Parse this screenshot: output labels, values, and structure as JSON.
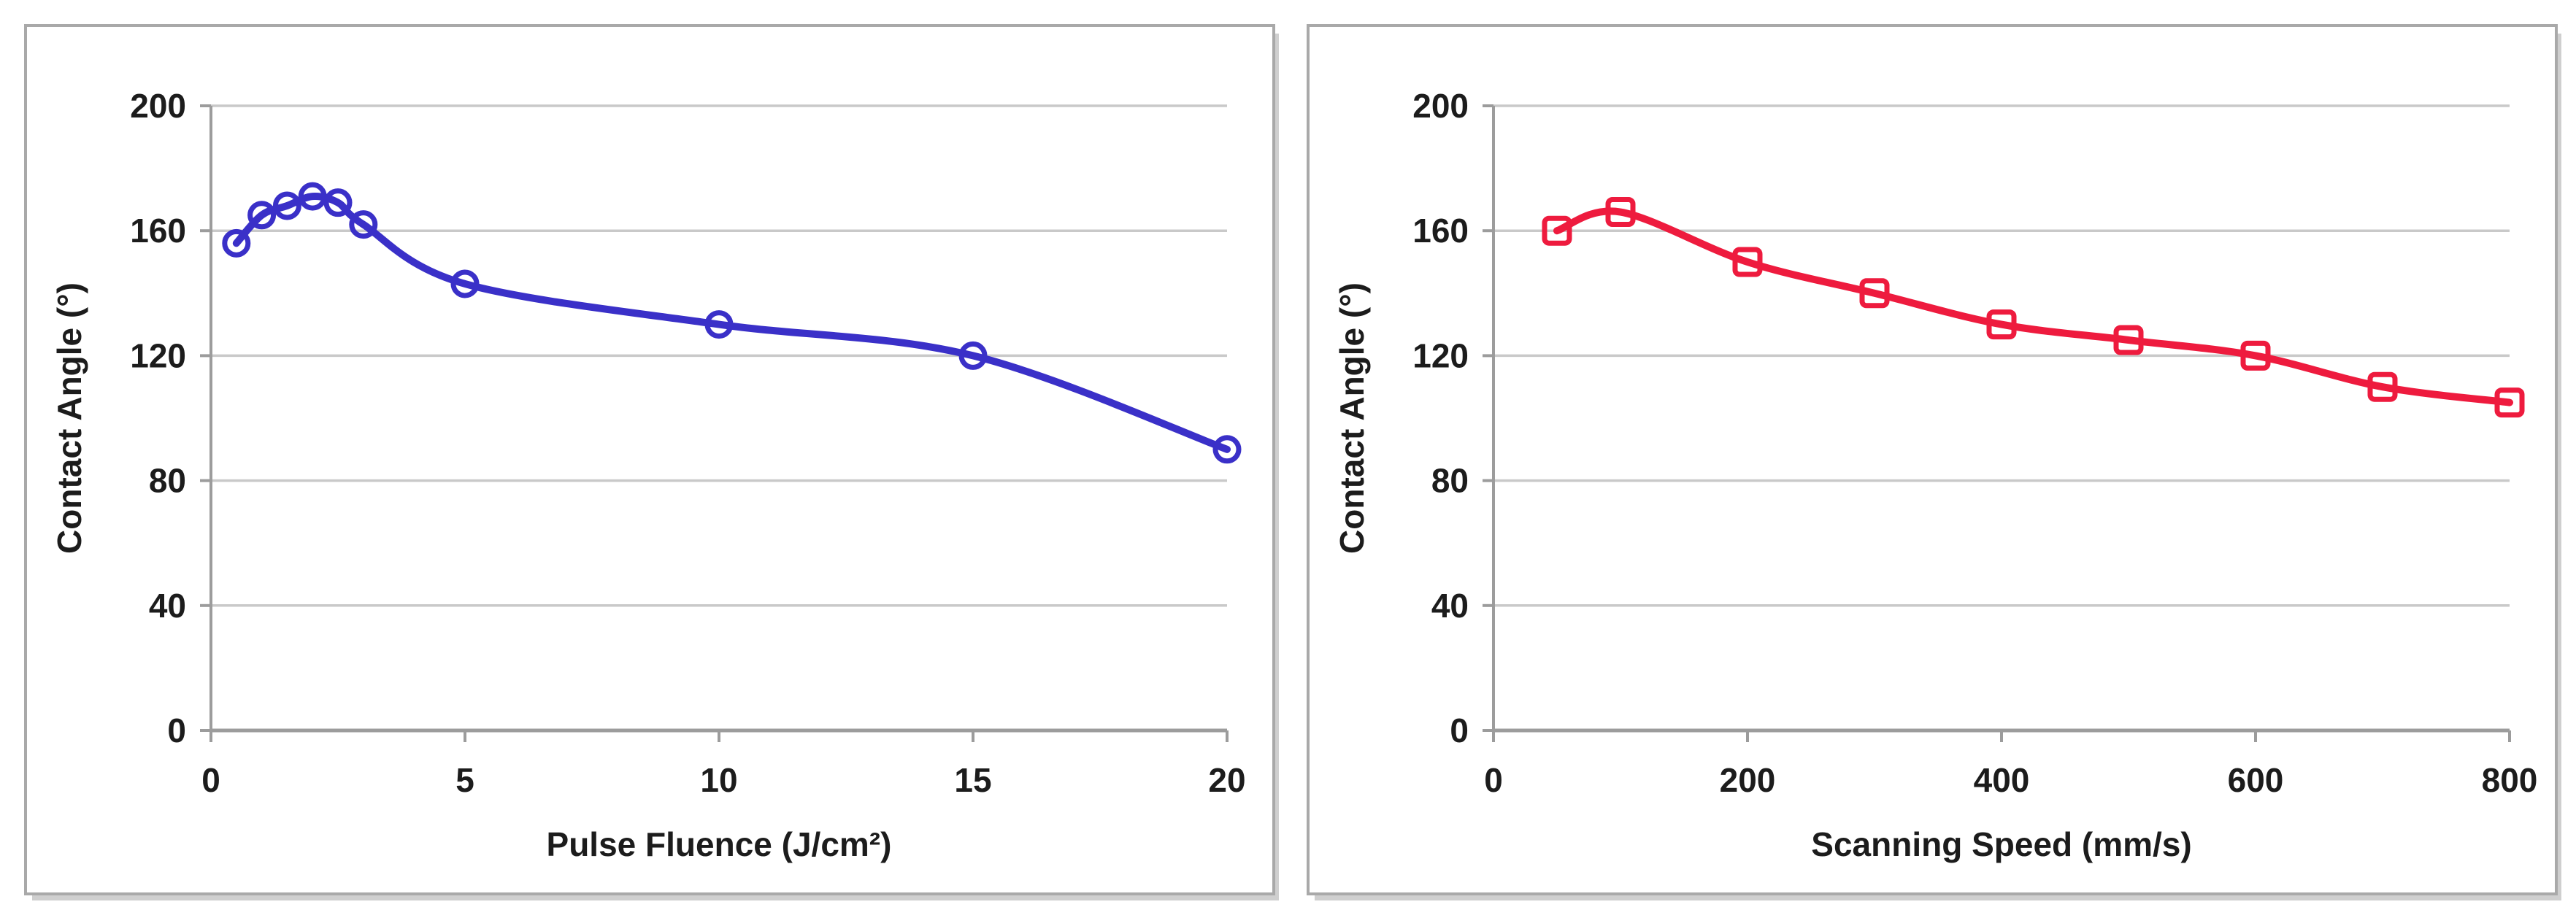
{
  "figure": {
    "background": "#ffffff",
    "panel_border_color": "#a9a9a9",
    "panel_shadow_color": "#cfcfcf",
    "grid_color": "#c9c9c9",
    "axis_color": "#9c9c9c",
    "text_color": "#1c1c1c",
    "tick_font_size": 46,
    "title_font_size": 46
  },
  "chart_data": [
    {
      "type": "line",
      "title": "",
      "xlabel": "Pulse Fluence (J/cm²)",
      "ylabel": "Contact Angle (°)",
      "xlim": [
        0,
        20
      ],
      "ylim": [
        0,
        200
      ],
      "xticks": [
        0,
        5,
        10,
        15,
        20
      ],
      "yticks": [
        0,
        40,
        80,
        120,
        160,
        200
      ],
      "grid": "horizontal",
      "legend": "none",
      "smooth": true,
      "series": [
        {
          "name": "contact-angle-vs-pulse-fluence",
          "color": "#3a30c8",
          "marker": "circle",
          "x": [
            0.5,
            1,
            1.5,
            2,
            2.5,
            3,
            5,
            10,
            15,
            20
          ],
          "y": [
            156,
            165,
            168,
            171,
            169,
            162,
            143,
            130,
            120,
            90
          ]
        }
      ]
    },
    {
      "type": "line",
      "title": "",
      "xlabel": "Scanning Speed (mm/s)",
      "ylabel": "Contact Angle (°)",
      "xlim": [
        0,
        800
      ],
      "ylim": [
        0,
        200
      ],
      "xticks": [
        0,
        200,
        400,
        600,
        800
      ],
      "yticks": [
        0,
        40,
        80,
        120,
        160,
        200
      ],
      "grid": "horizontal",
      "legend": "none",
      "smooth": true,
      "series": [
        {
          "name": "contact-angle-vs-scanning-speed",
          "color": "#ee1b3e",
          "marker": "square",
          "x": [
            50,
            100,
            200,
            300,
            400,
            500,
            600,
            700,
            800
          ],
          "y": [
            160,
            166,
            150,
            140,
            130,
            125,
            120,
            110,
            105
          ]
        }
      ]
    }
  ]
}
